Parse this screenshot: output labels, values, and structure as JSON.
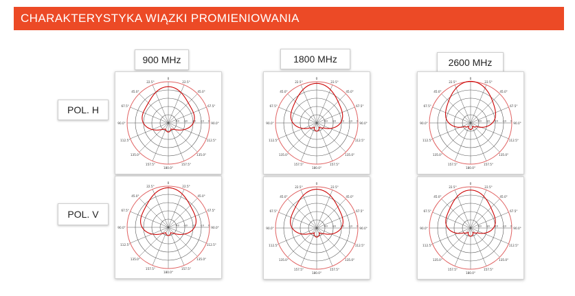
{
  "header": {
    "title": "CHARAKTERYSTYKA WIĄZKI PROMIENIOWANIA",
    "color": "#ec4a26"
  },
  "frequencies": [
    {
      "label": "900 MHz"
    },
    {
      "label": "1800 MHz"
    },
    {
      "label": "2600 MHz"
    }
  ],
  "polarizations": [
    {
      "label": "POL. H"
    },
    {
      "label": "POL. V"
    }
  ],
  "angle_labels": [
    "0",
    "22.5°",
    "45.0°",
    "67.5°",
    "90.0°",
    "112.5°",
    "135.0°",
    "157.5°",
    "180.0°",
    "157.5°",
    "135.0°",
    "112.5°",
    "90.0°",
    "67.5°",
    "45.0°",
    "22.5°"
  ],
  "ring_labels": [
    "-40",
    "-30",
    "-20",
    "-10",
    "0"
  ],
  "colors": {
    "pattern": "#cc0000",
    "grid": "#555555",
    "outer_ring": "#e06060"
  }
}
